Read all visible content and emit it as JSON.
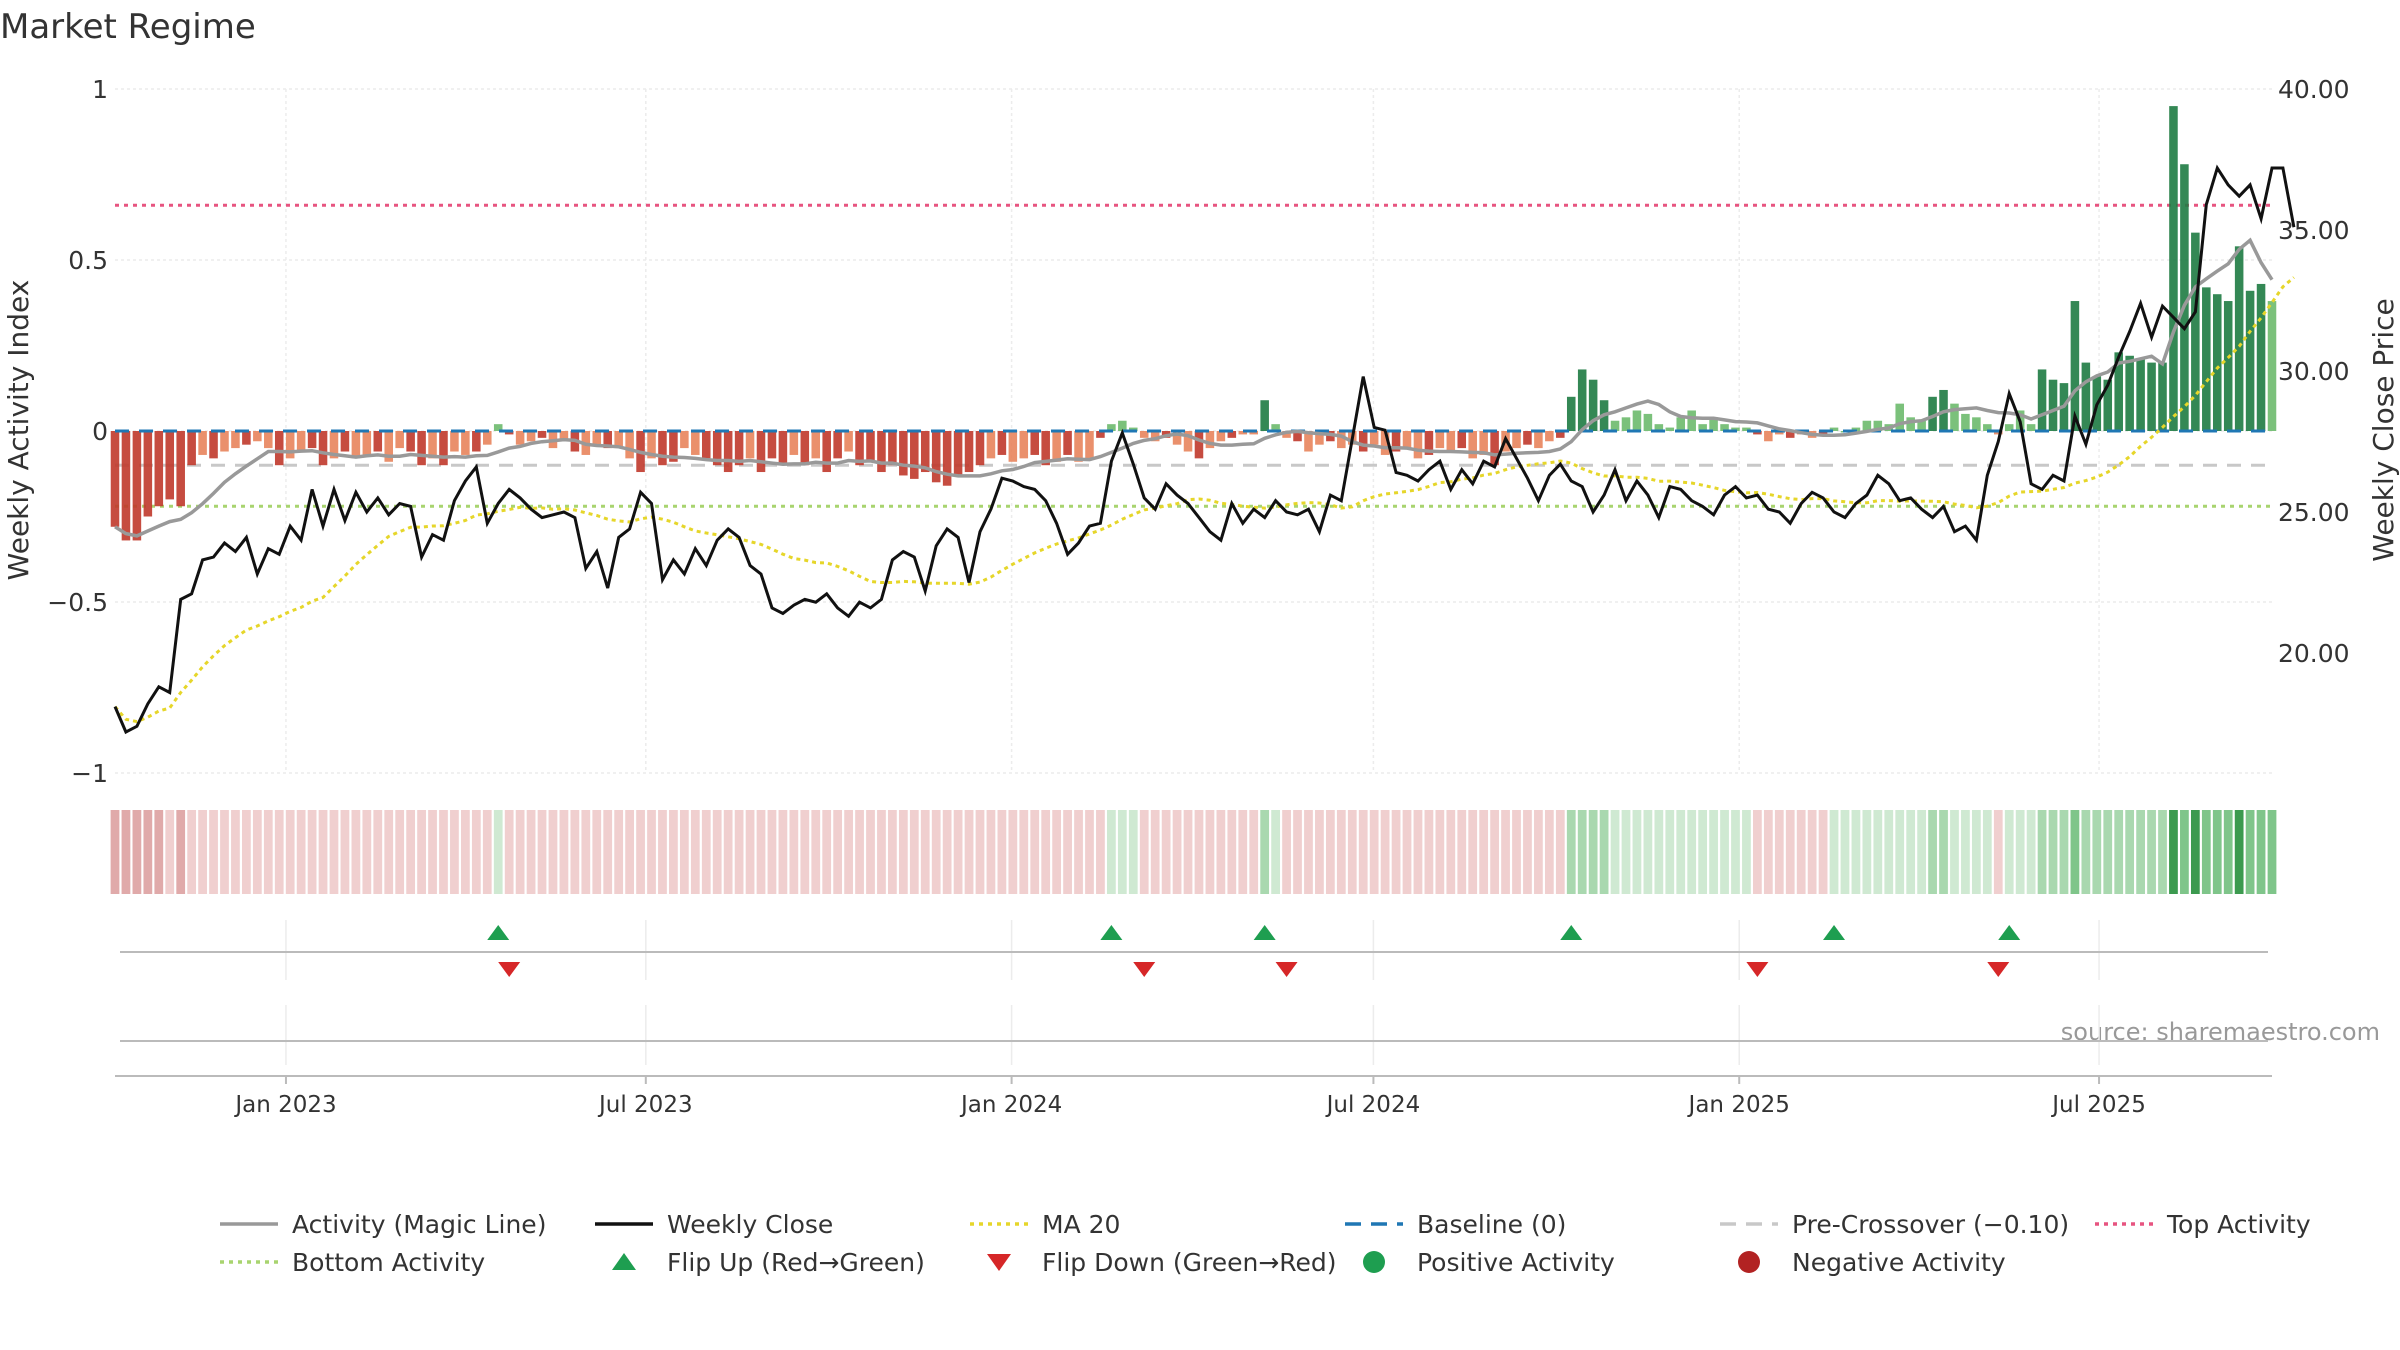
{
  "chart_data": {
    "type": "bar",
    "title": "Market Regime",
    "source": "source: sharemaestro.com",
    "y_left": {
      "label": "Weekly Activity Index",
      "range": [
        -1,
        1
      ],
      "ticks": [
        1,
        0.5,
        0,
        -0.5,
        -1
      ],
      "tick_labels": [
        "1",
        "0.5",
        "0",
        "−0.5",
        "−1"
      ]
    },
    "y_right": {
      "label": "Weekly Close Price",
      "range": [
        15,
        40
      ],
      "ticks": [
        40,
        35,
        30,
        25,
        20
      ],
      "tick_labels": [
        "40.00",
        "35.00",
        "30.00",
        "25.00",
        "20.00"
      ]
    },
    "x": {
      "start": "2022-10-07",
      "end": "2025-09-26",
      "ticks": [
        "2023-01-01",
        "2023-07-01",
        "2024-01-01",
        "2024-07-01",
        "2025-01-01",
        "2025-07-01"
      ],
      "tick_labels": [
        "Jan 2023",
        "Jul 2023",
        "Jan 2024",
        "Jul 2024",
        "Jan 2025",
        "Jul 2025"
      ]
    },
    "reference_lines": {
      "top_activity": 0.66,
      "bottom_activity": -0.22,
      "pre_crossover": -0.1,
      "baseline": 0
    },
    "colors": {
      "strong_neg": "#c0392b",
      "weak_neg": "#e8845c",
      "strong_pos": "#1e7b43",
      "weak_pos": "#6dba6d",
      "close": "#111111",
      "ma20": "#e6d62a",
      "magic": "#999999",
      "baseline": "#1f77b4",
      "pre": "#c8c8c8",
      "top": "#e75480",
      "bottom": "#a8d46f",
      "flip_up": "#1e9e50",
      "flip_down": "#d62728"
    },
    "activity": [
      -0.28,
      -0.32,
      -0.32,
      -0.25,
      -0.22,
      -0.2,
      -0.22,
      -0.1,
      -0.07,
      -0.08,
      -0.06,
      -0.05,
      -0.04,
      -0.03,
      -0.05,
      -0.1,
      -0.08,
      -0.06,
      -0.05,
      -0.1,
      -0.08,
      -0.06,
      -0.08,
      -0.07,
      -0.06,
      -0.09,
      -0.05,
      -0.06,
      -0.1,
      -0.08,
      -0.1,
      -0.06,
      -0.07,
      -0.06,
      -0.04,
      0.02,
      -0.01,
      -0.04,
      -0.03,
      -0.02,
      -0.05,
      -0.03,
      -0.06,
      -0.07,
      -0.04,
      -0.05,
      -0.05,
      -0.08,
      -0.12,
      -0.08,
      -0.1,
      -0.09,
      -0.05,
      -0.07,
      -0.08,
      -0.1,
      -0.12,
      -0.1,
      -0.08,
      -0.12,
      -0.08,
      -0.1,
      -0.07,
      -0.1,
      -0.08,
      -0.12,
      -0.08,
      -0.06,
      -0.1,
      -0.09,
      -0.12,
      -0.1,
      -0.13,
      -0.14,
      -0.12,
      -0.15,
      -0.16,
      -0.13,
      -0.12,
      -0.1,
      -0.08,
      -0.07,
      -0.09,
      -0.08,
      -0.07,
      -0.1,
      -0.09,
      -0.07,
      -0.09,
      -0.08,
      -0.02,
      0.02,
      0.03,
      0.01,
      -0.02,
      -0.03,
      -0.02,
      -0.04,
      -0.06,
      -0.08,
      -0.05,
      -0.03,
      -0.02,
      -0.01,
      -0.01,
      0.09,
      0.02,
      -0.02,
      -0.03,
      -0.06,
      -0.04,
      -0.03,
      -0.05,
      -0.04,
      -0.06,
      -0.04,
      -0.07,
      -0.06,
      -0.05,
      -0.08,
      -0.07,
      -0.05,
      -0.06,
      -0.05,
      -0.08,
      -0.07,
      -0.1,
      -0.06,
      -0.05,
      -0.04,
      -0.05,
      -0.03,
      -0.02,
      0.1,
      0.18,
      0.15,
      0.09,
      0.03,
      0.04,
      0.06,
      0.05,
      0.02,
      0.01,
      0.04,
      0.06,
      0.02,
      0.04,
      0.02,
      0.01,
      0.01,
      -0.01,
      -0.03,
      -0.01,
      -0.02,
      -0.01,
      -0.02,
      -0.01,
      0.01,
      0.0,
      0.01,
      0.03,
      0.03,
      0.02,
      0.08,
      0.04,
      0.03,
      0.1,
      0.12,
      0.08,
      0.05,
      0.04,
      0.02,
      -0.01,
      0.02,
      0.06,
      0.02,
      0.18,
      0.15,
      0.14,
      0.38,
      0.2,
      0.16,
      0.15,
      0.23,
      0.22,
      0.21,
      0.2,
      0.2,
      0.95,
      0.78,
      0.58,
      0.42,
      0.4,
      0.38,
      0.54,
      0.41,
      0.43,
      0.38
    ],
    "close": [
      18.1,
      17.2,
      17.4,
      18.2,
      18.8,
      18.6,
      21.9,
      22.1,
      23.3,
      23.4,
      23.9,
      23.6,
      24.1,
      22.8,
      23.7,
      23.5,
      24.5,
      24.0,
      25.8,
      24.5,
      25.8,
      24.7,
      25.7,
      25.0,
      25.5,
      24.9,
      25.3,
      25.2,
      23.4,
      24.2,
      24.0,
      25.4,
      26.1,
      26.6,
      24.6,
      25.3,
      25.8,
      25.5,
      25.1,
      24.8,
      24.9,
      25.0,
      24.8,
      23.0,
      23.6,
      22.3,
      24.1,
      24.4,
      25.7,
      25.3,
      22.6,
      23.3,
      22.8,
      23.7,
      23.1,
      24.0,
      24.4,
      24.1,
      23.1,
      22.8,
      21.6,
      21.4,
      21.7,
      21.9,
      21.8,
      22.1,
      21.6,
      21.3,
      21.8,
      21.6,
      21.9,
      23.3,
      23.6,
      23.4,
      22.2,
      23.8,
      24.4,
      24.1,
      22.5,
      24.3,
      25.1,
      26.2,
      26.1,
      25.9,
      25.8,
      25.4,
      24.6,
      23.5,
      23.9,
      24.5,
      24.6,
      26.8,
      27.8,
      26.7,
      25.5,
      25.1,
      26.0,
      25.6,
      25.3,
      24.8,
      24.3,
      24.0,
      25.3,
      24.6,
      25.1,
      24.8,
      25.4,
      25.0,
      24.9,
      25.1,
      24.3,
      25.6,
      25.4,
      27.6,
      29.8,
      28.0,
      27.9,
      26.4,
      26.3,
      26.1,
      26.5,
      26.8,
      25.8,
      26.5,
      26.0,
      26.8,
      26.6,
      27.6,
      26.9,
      26.2,
      25.4,
      26.3,
      26.7,
      26.1,
      25.9,
      25.0,
      25.6,
      26.5,
      25.4,
      26.1,
      25.6,
      24.8,
      25.9,
      25.8,
      25.4,
      25.2,
      24.9,
      25.6,
      25.9,
      25.5,
      25.6,
      25.1,
      25.0,
      24.6,
      25.3,
      25.7,
      25.5,
      25.0,
      24.8,
      25.3,
      25.6,
      26.3,
      26.0,
      25.4,
      25.5,
      25.1,
      24.8,
      25.2,
      24.3,
      24.5,
      24.0,
      26.3,
      27.5,
      29.2,
      28.2,
      26.0,
      25.8,
      26.3,
      26.1,
      28.4,
      27.4,
      28.8,
      29.5,
      30.5,
      31.4,
      32.4,
      31.2,
      32.3,
      31.9,
      31.5,
      32.1,
      35.9,
      37.2,
      36.6,
      36.2,
      36.6,
      35.4,
      37.2,
      37.2,
      35.1
    ]
  },
  "legend": [
    {
      "label": "Activity (Magic Line)",
      "kind": "line",
      "color": "#999999",
      "dash": "solid"
    },
    {
      "label": "Weekly Close",
      "kind": "line",
      "color": "#111111",
      "dash": "solid"
    },
    {
      "label": "MA 20",
      "kind": "line",
      "color": "#e6d62a",
      "dash": "dotted"
    },
    {
      "label": "Baseline (0)",
      "kind": "line",
      "color": "#1f77b4",
      "dash": "dashed"
    },
    {
      "label": "Pre-Crossover (−0.10)",
      "kind": "line",
      "color": "#c8c8c8",
      "dash": "dashed"
    },
    {
      "label": "Top Activity",
      "kind": "line",
      "color": "#e75480",
      "dash": "dotted"
    },
    {
      "label": "Bottom Activity",
      "kind": "line",
      "color": "#a8d46f",
      "dash": "dotted"
    },
    {
      "label": "Flip Up (Red→Green)",
      "kind": "triangle-up",
      "color": "#1e9e50"
    },
    {
      "label": "Flip Down (Green→Red)",
      "kind": "triangle-down",
      "color": "#d62728"
    },
    {
      "label": "Positive Activity",
      "kind": "dot",
      "color": "#1e9e50"
    },
    {
      "label": "Negative Activity",
      "kind": "dot",
      "color": "#b22222"
    }
  ]
}
